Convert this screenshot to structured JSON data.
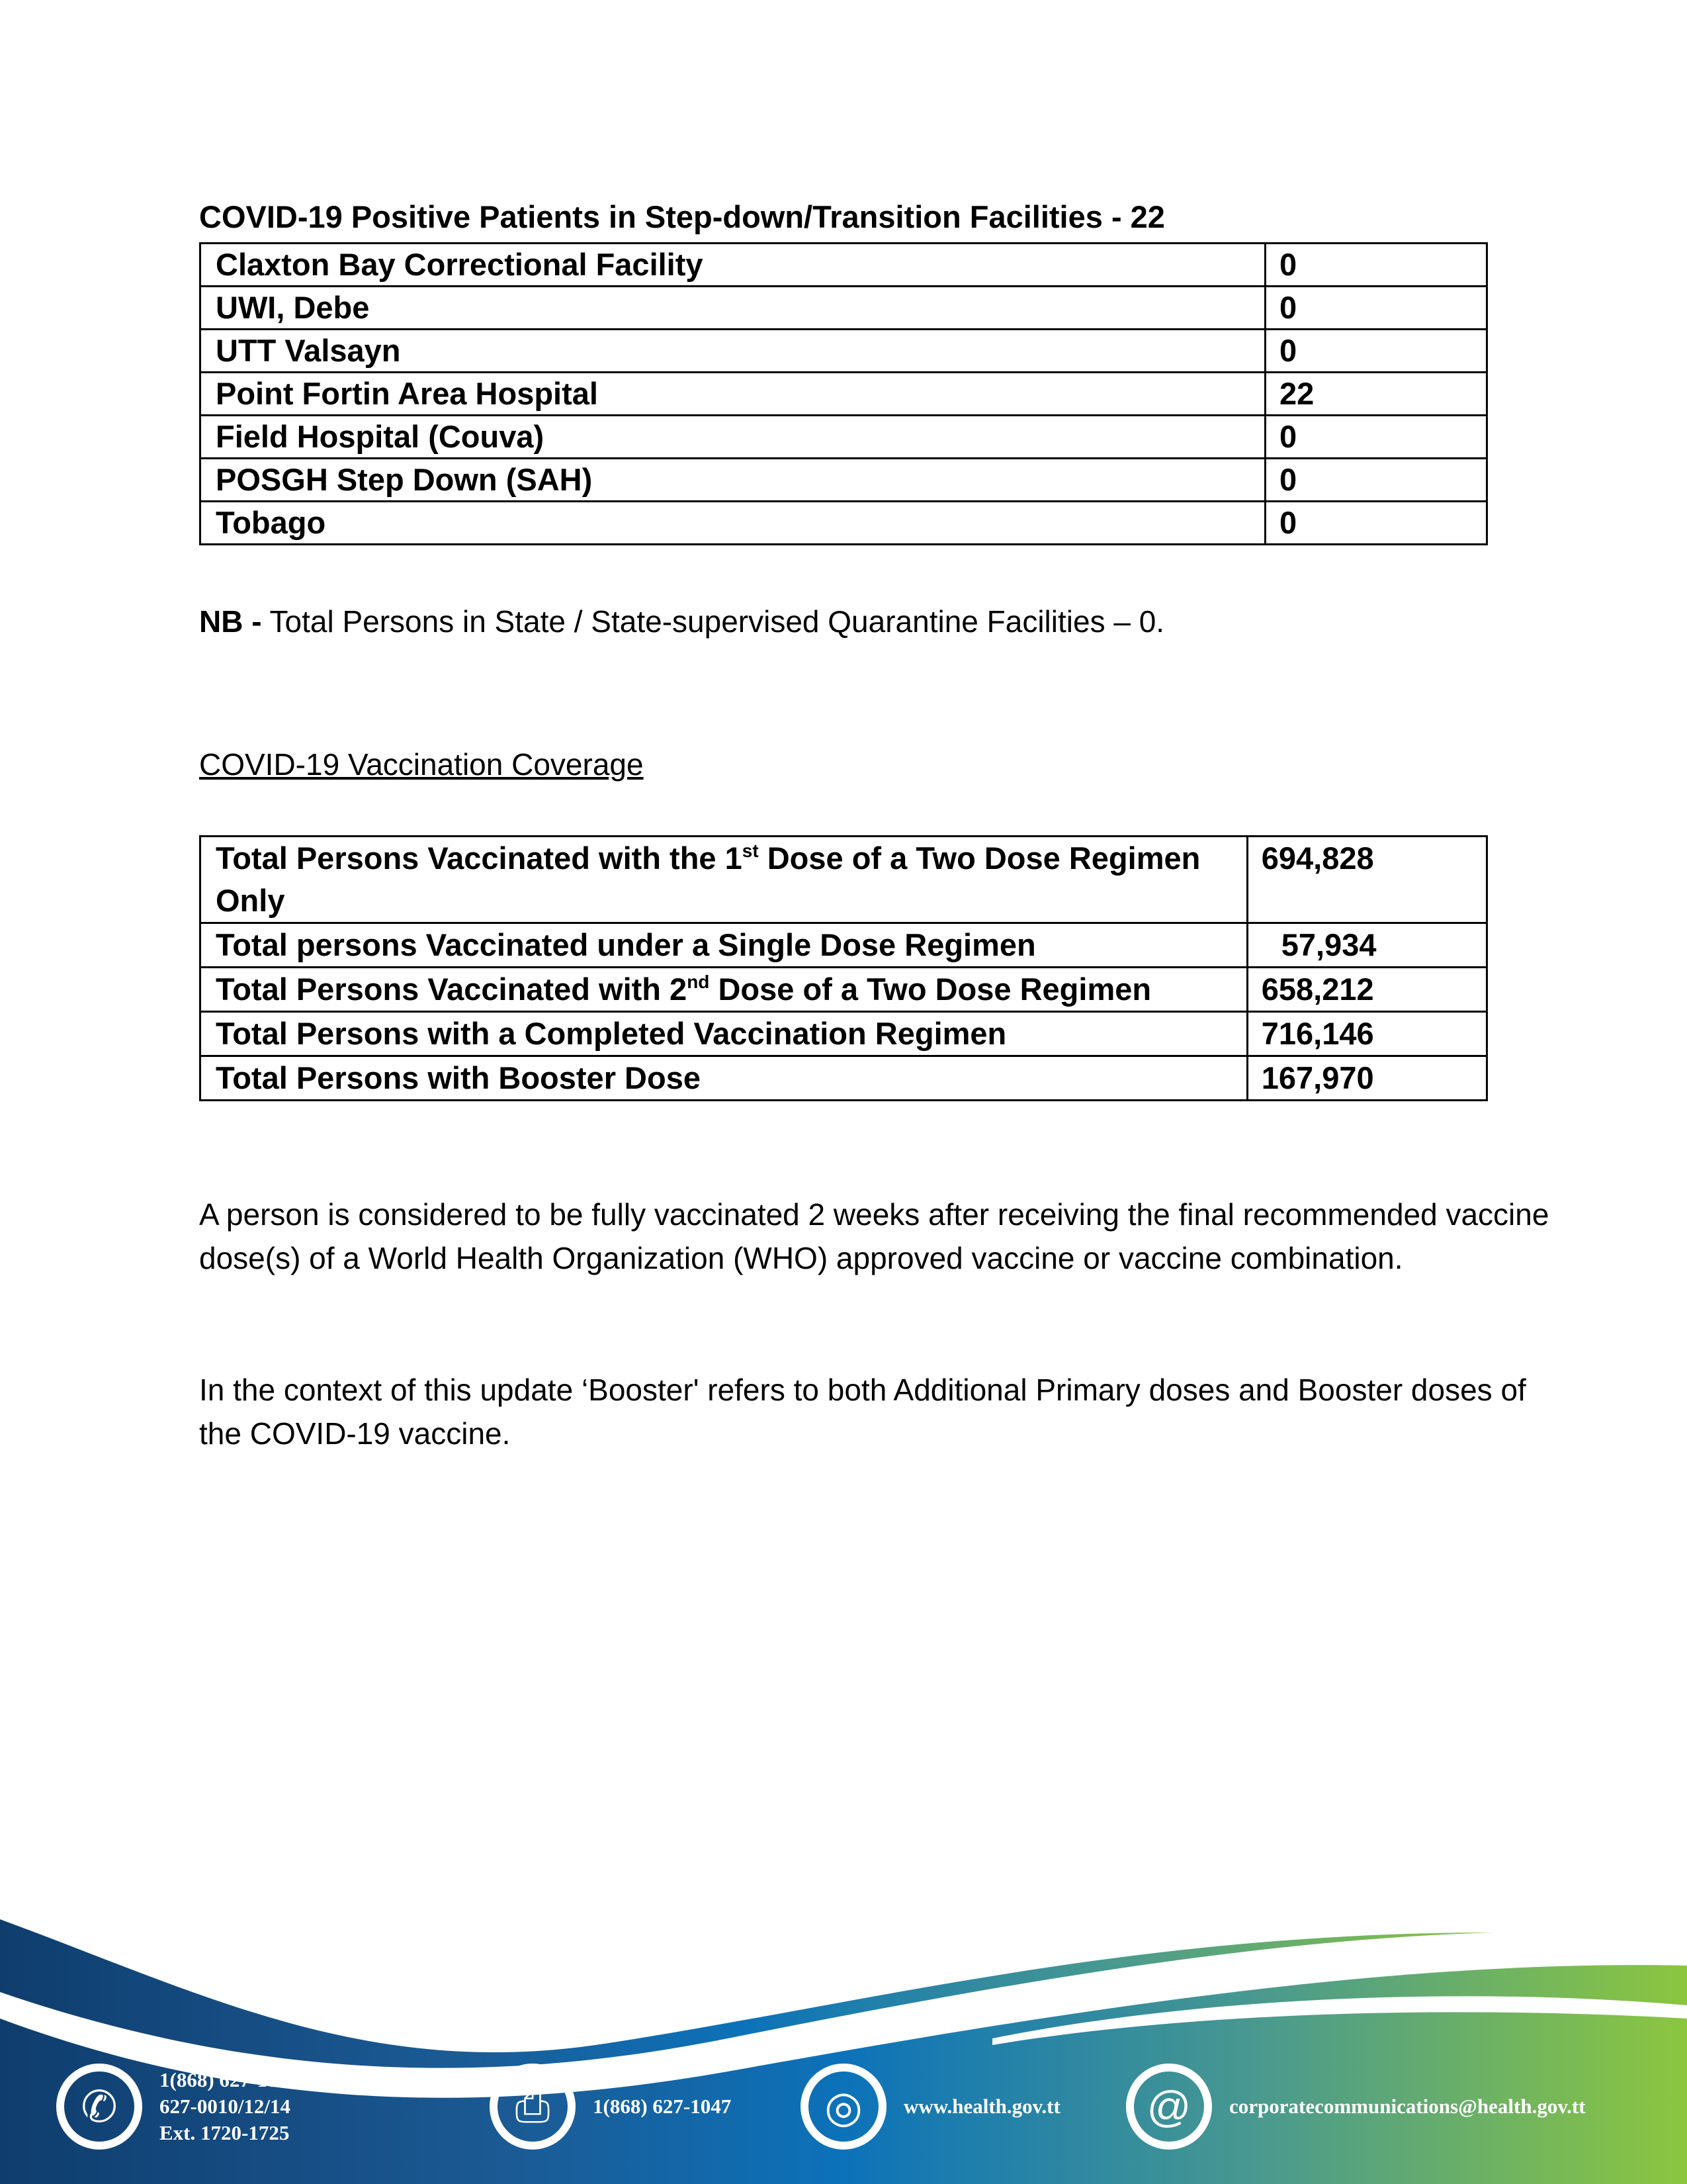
{
  "step_down": {
    "title": "COVID-19 Positive Patients in Step-down/Transition Facilities - 22",
    "rows": [
      {
        "facility": "Claxton Bay Correctional Facility",
        "count": "0"
      },
      {
        "facility": "UWI, Debe",
        "count": "0"
      },
      {
        "facility": "UTT Valsayn",
        "count": "0"
      },
      {
        "facility": "Point Fortin Area Hospital",
        "count": "22"
      },
      {
        "facility": "Field Hospital (Couva)",
        "count": "0"
      },
      {
        "facility": "POSGH Step Down (SAH)",
        "count": "0"
      },
      {
        "facility": "Tobago",
        "count": "0"
      }
    ]
  },
  "nb": {
    "label": "NB -",
    "text": " Total Persons in State / State-supervised Quarantine Facilities – 0."
  },
  "vaccination": {
    "heading": "COVID-19 Vaccination Coverage",
    "rows": [
      {
        "pre": "Total Persons Vaccinated with the 1",
        "sup": "st",
        "post": " Dose of a Two Dose Regimen Only",
        "value": "694,828"
      },
      {
        "pre": "Total persons Vaccinated under a Single Dose Regimen",
        "sup": "",
        "post": "",
        "value": "57,934"
      },
      {
        "pre": "Total Persons Vaccinated with 2",
        "sup": "nd",
        "post": " Dose of a Two Dose Regimen",
        "value": "658,212"
      },
      {
        "pre": "Total Persons with a Completed Vaccination Regimen",
        "sup": "",
        "post": "",
        "value": "716,146"
      },
      {
        "pre": "Total Persons with Booster Dose",
        "sup": "",
        "post": "",
        "value": "167,970"
      }
    ]
  },
  "paragraphs": [
    "A person is considered to be fully vaccinated 2 weeks after receiving the final recommended vaccine dose(s) of a  World Health Organization (WHO) approved vaccine or vaccine combination.",
    "In the context of this update ‘Booster' refers to both Additional Primary doses and Booster doses of the COVID-19 vaccine."
  ],
  "footer": {
    "colors": {
      "dark_blue": "#0f3d6e",
      "mid_blue": "#0c72b9",
      "green": "#8cc63f"
    },
    "phone": {
      "icon": "phone-icon",
      "lines": [
        "1(868) 627-1047/ 623-8492 or",
        "627-0010/12/14",
        "Ext. 1720-1725"
      ]
    },
    "fax": {
      "icon": "fax-icon",
      "text": "1(868) 627-1047"
    },
    "web": {
      "icon": "globe-icon",
      "text": "www.health.gov.tt"
    },
    "email": {
      "icon": "at-icon",
      "text": "corporatecommunications@health.gov.tt"
    }
  }
}
